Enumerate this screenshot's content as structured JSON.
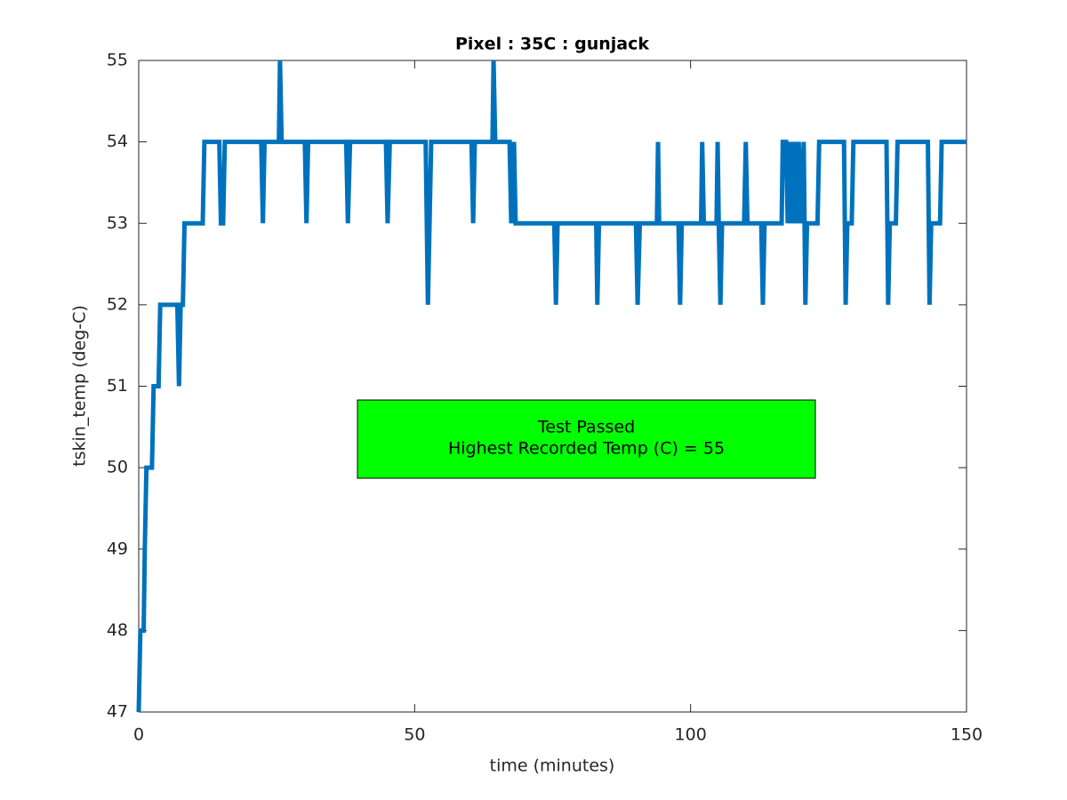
{
  "chart_data": {
    "type": "line",
    "title": "Pixel : 35C : gunjack",
    "xlabel": "time (minutes)",
    "ylabel": "tskin_temp (deg-C)",
    "x": [
      0,
      0.3,
      0.9,
      1.1,
      1.4,
      2.4,
      2.7,
      3.6,
      3.9,
      7,
      7.3,
      7.6,
      8,
      8.3,
      11.6,
      11.9,
      14.6,
      14.9,
      15.3,
      15.6,
      22.2,
      22.5,
      22.8,
      25.4,
      25.6,
      25.9,
      30.1,
      30.4,
      30.7,
      37.6,
      37.9,
      38.3,
      44.8,
      45.1,
      45.5,
      52,
      52.4,
      52.7,
      53,
      60.3,
      60.6,
      60.9,
      64.1,
      64.3,
      64.6,
      67.2,
      67.5,
      68,
      68.3,
      75.3,
      75.6,
      75.9,
      82.9,
      83.1,
      83.4,
      90.1,
      90.4,
      90.8,
      93.9,
      94.1,
      94.3,
      97.8,
      98.1,
      98.4,
      101.9,
      102.1,
      102.4,
      104.7,
      104.9,
      105.1,
      105.4,
      105.7,
      109.7,
      110,
      110.3,
      112.8,
      113.1,
      113.4,
      116.5,
      116.7,
      117.3,
      117.6,
      118,
      118.4,
      118.8,
      119.2,
      119.6,
      120,
      120.5,
      120.8,
      121.1,
      123,
      123.3,
      127.8,
      128.1,
      128.4,
      129.2,
      129.5,
      135.5,
      135.8,
      136.1,
      137.2,
      137.5,
      143,
      143.3,
      143.6,
      145.2,
      145.5,
      150
    ],
    "series": [
      {
        "color": "#0072bd",
        "values": [
          47,
          48,
          48,
          49,
          50,
          50,
          51,
          51,
          52,
          52,
          51,
          52,
          52,
          53,
          53,
          54,
          54,
          53,
          53,
          54,
          54,
          53,
          54,
          54,
          55,
          54,
          54,
          53,
          54,
          54,
          53,
          54,
          54,
          53,
          54,
          54,
          52,
          53,
          54,
          54,
          53,
          54,
          54,
          55,
          54,
          54,
          53,
          54,
          53,
          53,
          52,
          53,
          53,
          52,
          53,
          53,
          52,
          53,
          53,
          54,
          53,
          53,
          52,
          53,
          53,
          54,
          53,
          53,
          54,
          53,
          52,
          53,
          53,
          54,
          53,
          53,
          52,
          53,
          53,
          54,
          54,
          53,
          54,
          53,
          54,
          53,
          54,
          53,
          54,
          52,
          53,
          53,
          54,
          54,
          52,
          53,
          53,
          54,
          54,
          52,
          53,
          53,
          54,
          54,
          52,
          53,
          53,
          54,
          54
        ]
      }
    ],
    "xlim": [
      0,
      150
    ],
    "xticks": [
      0,
      50,
      100,
      150
    ],
    "ylim": [
      47,
      55
    ],
    "yticks": [
      47,
      48,
      49,
      50,
      51,
      52,
      53,
      54,
      55
    ],
    "annotations": [
      "Test Passed",
      "Highest Recorded Temp (C) = 55"
    ],
    "annotation_color": "#00ff00"
  }
}
